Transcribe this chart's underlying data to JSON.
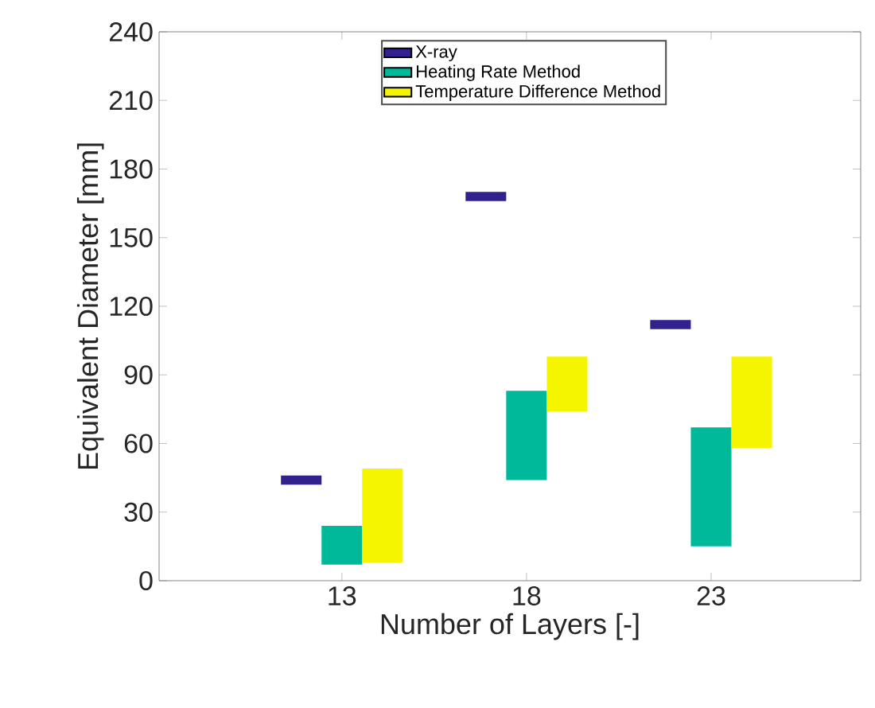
{
  "chart_data": {
    "type": "bar",
    "xlabel": "Number of Layers [-]",
    "ylabel": "Equivalent Diameter [mm]",
    "categories": [
      "13",
      "18",
      "23"
    ],
    "series": [
      {
        "name": "X-ray",
        "color": "#31218c",
        "base": [
          42,
          166,
          110
        ],
        "values": [
          4,
          4,
          4
        ]
      },
      {
        "name": "Heating Rate Method",
        "color": "#00b89a",
        "base": [
          7,
          44,
          15
        ],
        "values": [
          17,
          39,
          52
        ]
      },
      {
        "name": "Temperature Difference Method",
        "color": "#f5f500",
        "base": [
          8,
          74,
          58
        ],
        "values": [
          41,
          24,
          40
        ]
      }
    ],
    "ylim": [
      0,
      240
    ],
    "yticks": [
      0,
      30,
      60,
      90,
      120,
      150,
      180,
      210,
      240
    ],
    "legend": "top"
  }
}
